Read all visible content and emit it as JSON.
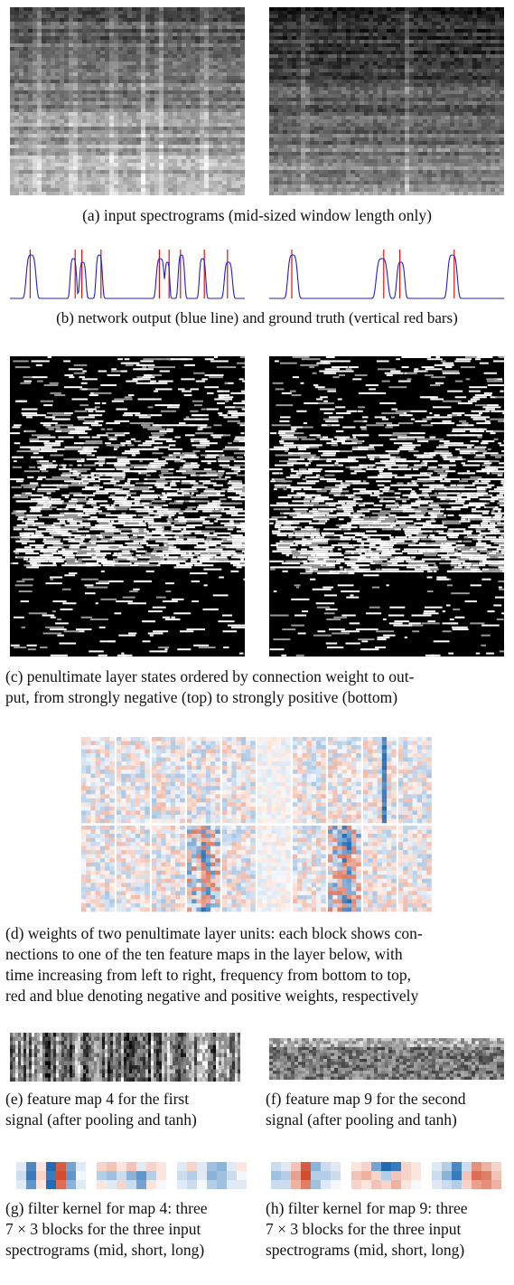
{
  "captions": {
    "a": "(a) input spectrograms (mid-sized window length only)",
    "b": "(b) network output (blue line) and ground truth (vertical red bars)",
    "c_line1": "(c) penultimate layer states ordered by connection weight to out-",
    "c_line2": "put, from strongly negative (top) to strongly positive (bottom)",
    "d_line1": "(d) weights of two penultimate layer units: each block shows con-",
    "d_line2": "nections to one of the ten feature maps in the layer below, with",
    "d_line3": "time increasing from left to right, frequency from bottom to top,",
    "d_line4": "red and blue denoting negative and positive weights, respectively",
    "e_line1": "(e) feature map 4 for the first",
    "e_line2": "signal (after pooling and tanh)",
    "f_line1": "(f) feature map 9 for the second",
    "f_line2": "signal (after pooling and tanh)",
    "g_line1": "(g) filter kernel for map 4: three",
    "g_line2": "7 × 3 blocks for the three input",
    "g_line3": "spectrograms (mid, short, long)",
    "h_line1": "(h) filter kernel for map 9: three",
    "h_line2": "7 × 3 blocks for the three input",
    "h_line3": "spectrograms (mid, short, long)"
  },
  "colors": {
    "network_output": "#1f1fd0",
    "ground_truth": "#e01010",
    "negative_weight": "#d33a2a",
    "positive_weight": "#2a6fb0"
  },
  "plots_b": {
    "left_onsets": [
      0.09,
      0.27,
      0.31,
      0.38,
      0.64,
      0.67,
      0.73,
      0.82,
      0.93
    ],
    "right_onsets": [
      0.1,
      0.48,
      0.56,
      0.78
    ]
  }
}
